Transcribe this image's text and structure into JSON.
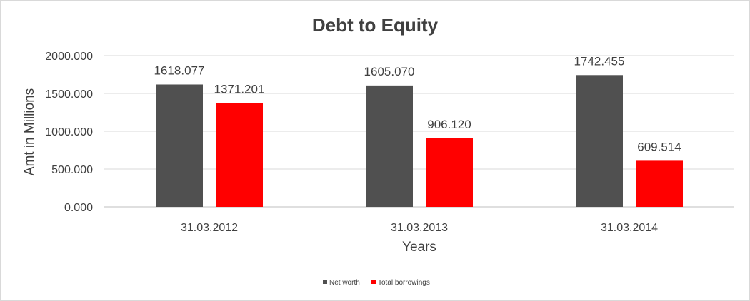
{
  "chart_data": {
    "type": "bar",
    "title": "Debt to Equity",
    "xlabel": "Years",
    "ylabel": "Amt in Millions",
    "categories": [
      "31.03.2012",
      "31.03.2013",
      "31.03.2014"
    ],
    "series": [
      {
        "name": "Net worth",
        "color": "#505050",
        "values": [
          1618.077,
          1605.07,
          1742.455
        ],
        "labels": [
          "1618.077",
          "1605.070",
          "1742.455"
        ]
      },
      {
        "name": "Total borrowings",
        "color": "#ff0000",
        "values": [
          1371.201,
          906.12,
          609.514
        ],
        "labels": [
          "1371.201",
          "906.120",
          "609.514"
        ]
      }
    ],
    "ylim": [
      0,
      2000
    ],
    "yticks": [
      "0.000",
      "500.000",
      "1000.000",
      "1500.000",
      "2000.000"
    ],
    "grid": true,
    "legend": "bottom"
  }
}
